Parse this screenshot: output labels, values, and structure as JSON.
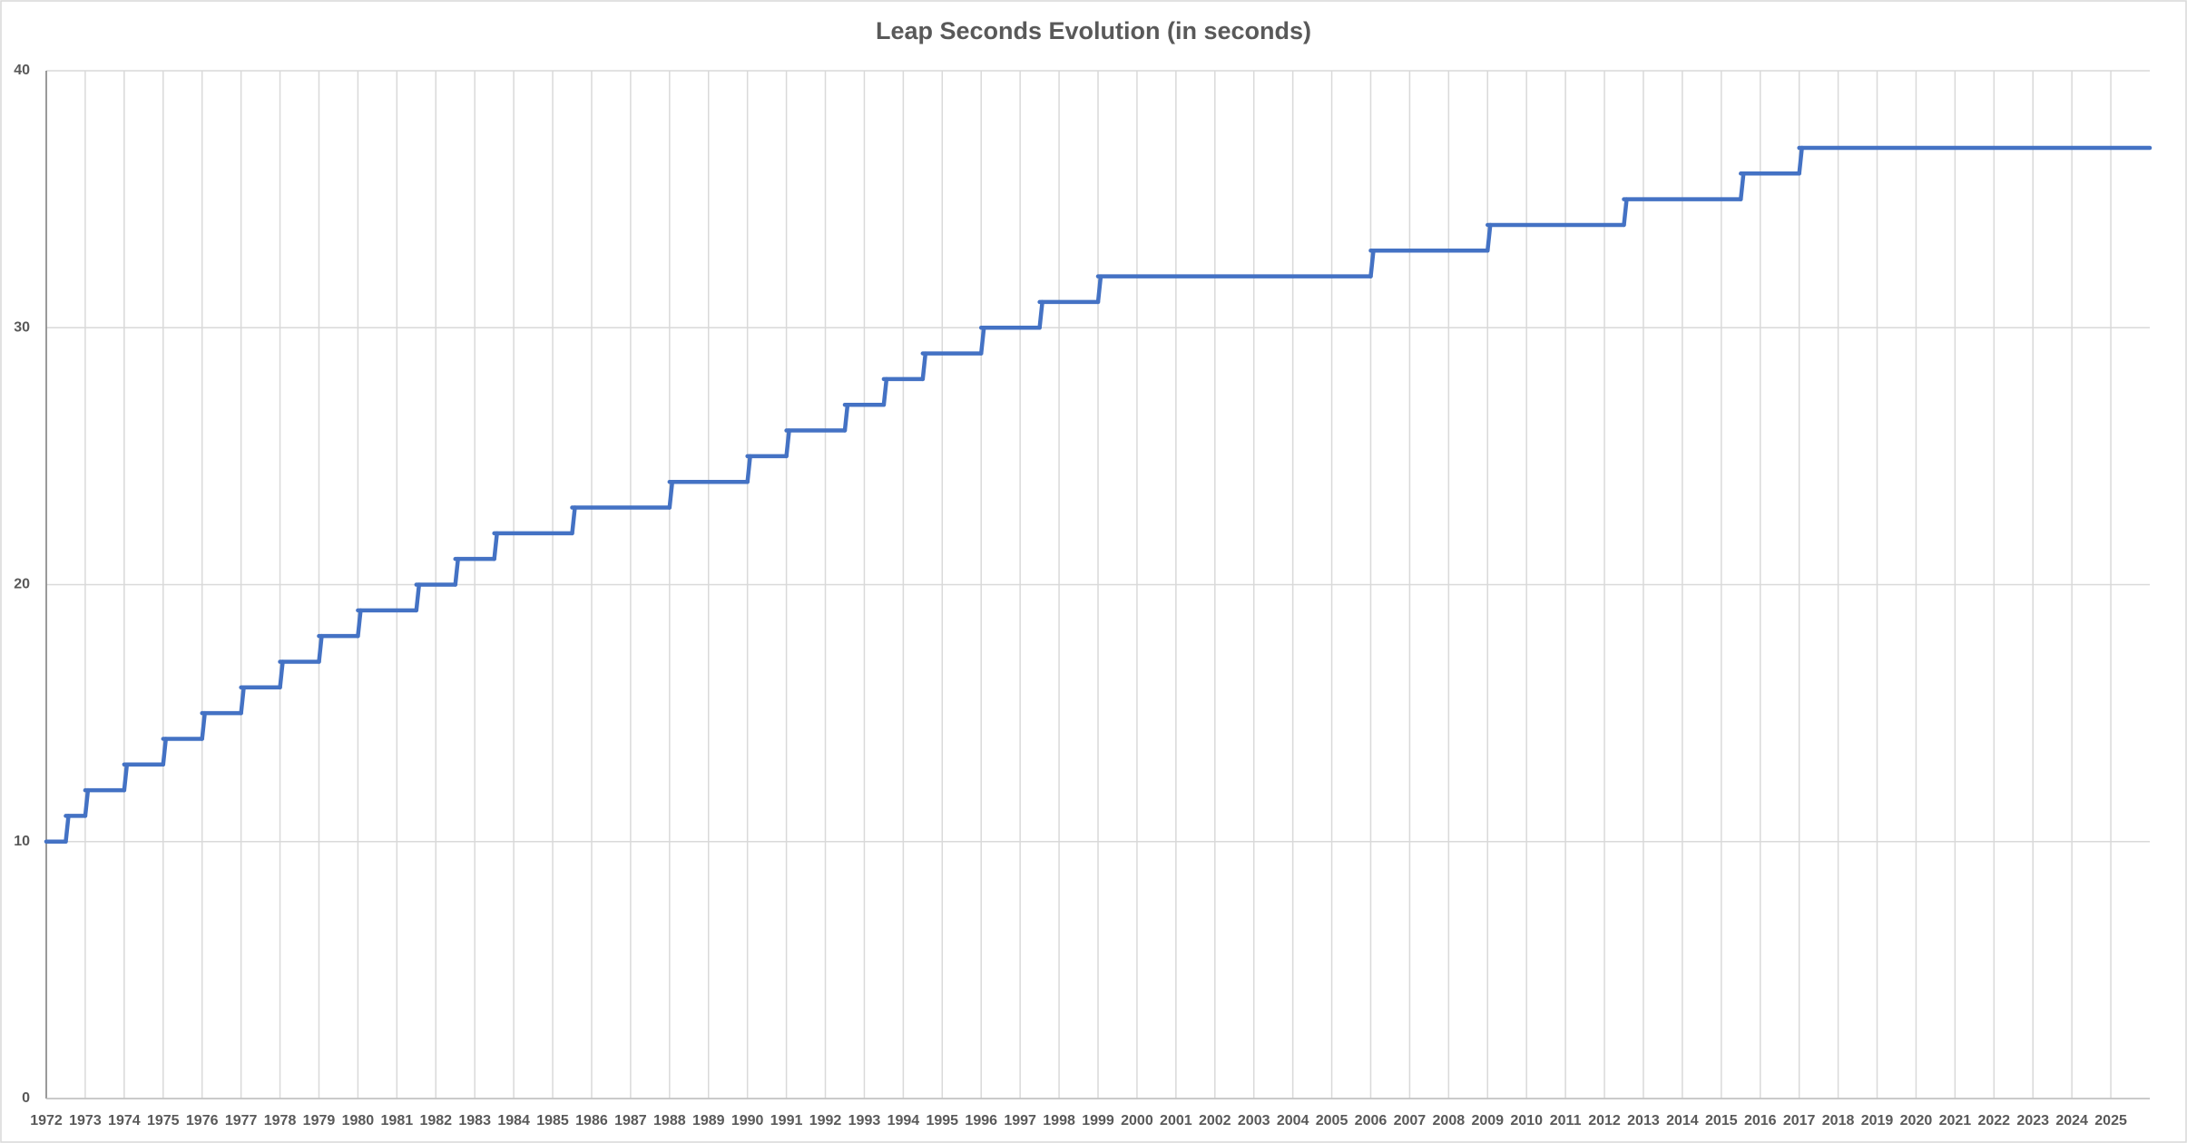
{
  "chart_data": {
    "type": "line",
    "title": "Leap Seconds Evolution (in seconds)",
    "x": [
      1972,
      1972.5,
      1973,
      1974,
      1975,
      1976,
      1977,
      1978,
      1979,
      1980,
      1981.5,
      1982.5,
      1983.5,
      1985.5,
      1988,
      1990,
      1991,
      1992.5,
      1993.5,
      1994.5,
      1996,
      1997.5,
      1999,
      2006,
      2009,
      2012.5,
      2015.5,
      2017
    ],
    "series": [
      {
        "color": "#4472c4",
        "values": [
          10,
          11,
          12,
          13,
          14,
          15,
          16,
          17,
          18,
          19,
          20,
          21,
          22,
          23,
          24,
          25,
          26,
          27,
          28,
          29,
          30,
          31,
          32,
          33,
          34,
          35,
          36,
          37
        ]
      }
    ],
    "step": true,
    "xlim": [
      1972,
      2026
    ],
    "xticks": [
      1972,
      1973,
      1974,
      1975,
      1976,
      1977,
      1978,
      1979,
      1980,
      1981,
      1982,
      1983,
      1984,
      1985,
      1986,
      1987,
      1988,
      1989,
      1990,
      1991,
      1992,
      1993,
      1994,
      1995,
      1996,
      1997,
      1998,
      1999,
      2000,
      2001,
      2002,
      2003,
      2004,
      2005,
      2006,
      2007,
      2008,
      2009,
      2010,
      2011,
      2012,
      2013,
      2014,
      2015,
      2016,
      2017,
      2018,
      2019,
      2020,
      2021,
      2022,
      2023,
      2024,
      2025
    ],
    "ylim": [
      0,
      40
    ],
    "yticks": [
      0,
      10,
      20,
      30,
      40
    ],
    "grid": true
  }
}
